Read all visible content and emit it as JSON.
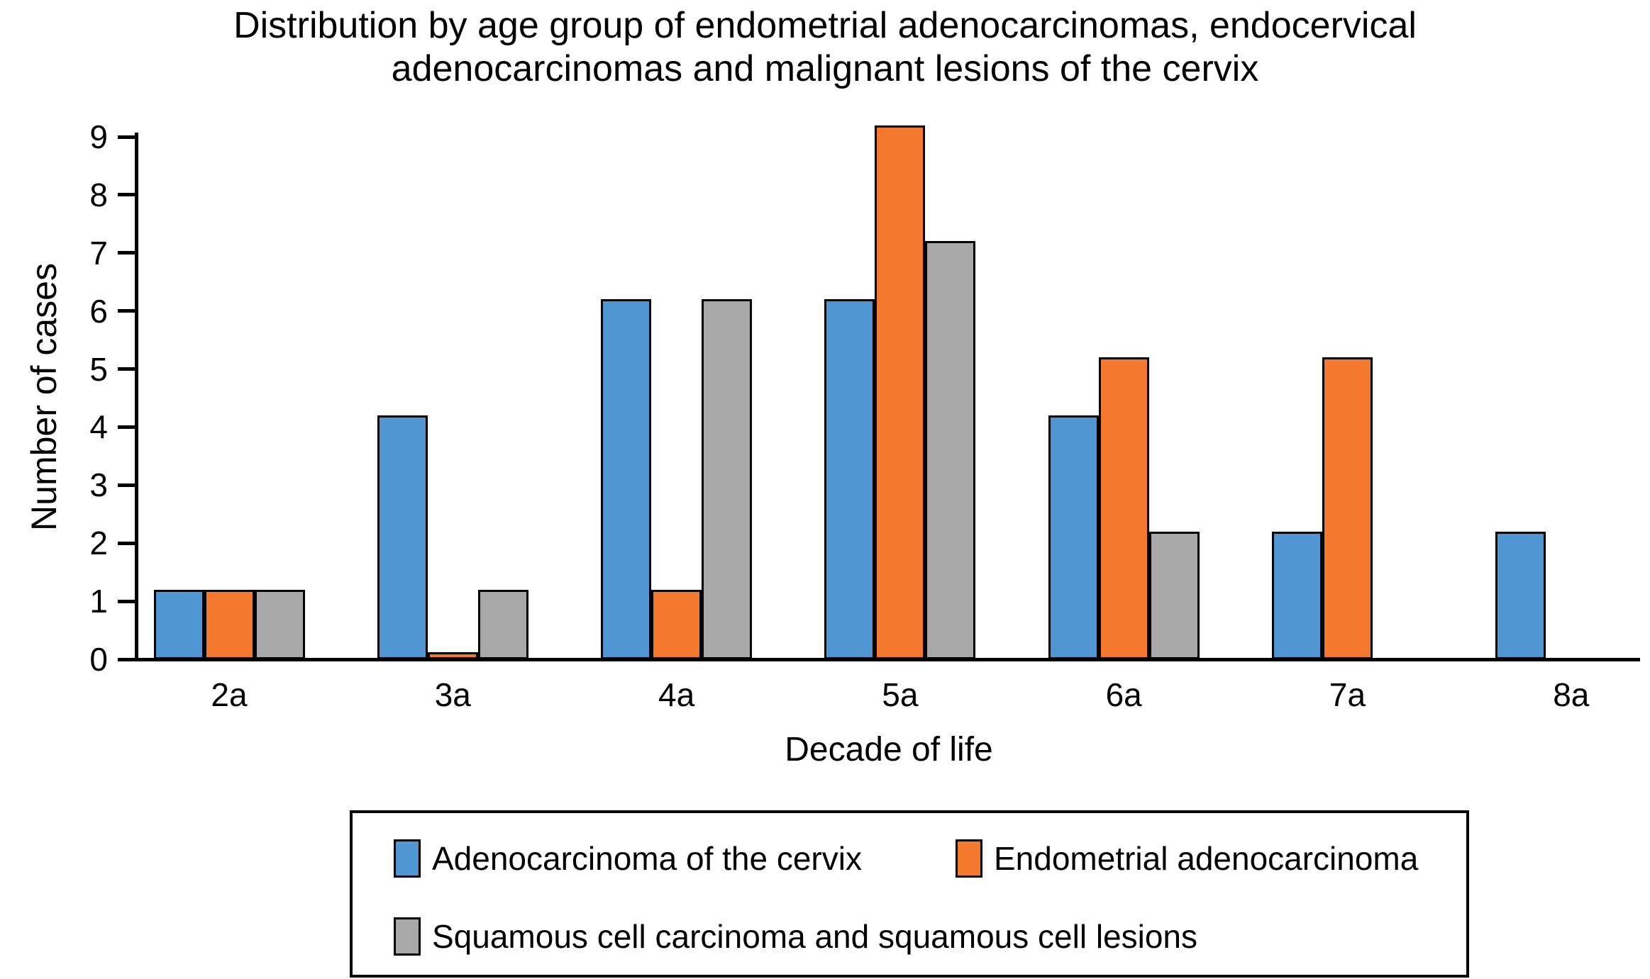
{
  "figure": {
    "title_line1": "Distribution by age group of endometrial adenocarcinomas, endocervical",
    "title_line2": "adenocarcinomas and malignant lesions of the cervix"
  },
  "chart_data": {
    "type": "bar",
    "title": "Distribution by age group of endometrial adenocarcinomas, endocervical adenocarcinomas and malignant lesions of the cervix",
    "xlabel": "Decade of life",
    "ylabel": "Number of cases",
    "categories": [
      "2a",
      "3a",
      "4a",
      "5a",
      "6a",
      "7a",
      "8a"
    ],
    "series": [
      {
        "name": "Adenocarcinoma of the cervix",
        "color": "#4F96D3",
        "values": [
          1.2,
          4.2,
          6.2,
          6.2,
          4.2,
          2.2,
          2.2
        ]
      },
      {
        "name": "Endometrial adenocarcinoma",
        "color": "#F4792E",
        "values": [
          1.2,
          0.12,
          1.2,
          9.2,
          5.2,
          5.2,
          0
        ]
      },
      {
        "name": "Squamous cell carcinoma and squamous cell lesions",
        "color": "#A8A8A8",
        "values": [
          1.2,
          1.2,
          6.2,
          7.2,
          2.2,
          0,
          0
        ]
      }
    ],
    "ylim": [
      0,
      9
    ],
    "ytick_labels": [
      "0",
      "1",
      "2",
      "3",
      "4",
      "5",
      "6",
      "7",
      "8",
      "9"
    ],
    "grid": false,
    "legend_position": "bottom-box",
    "legend_rows": [
      [
        0,
        1
      ],
      [
        2
      ]
    ],
    "axis_color": "#000000",
    "bar_border_color": "#000000",
    "background_color": "#FFFFFF"
  }
}
